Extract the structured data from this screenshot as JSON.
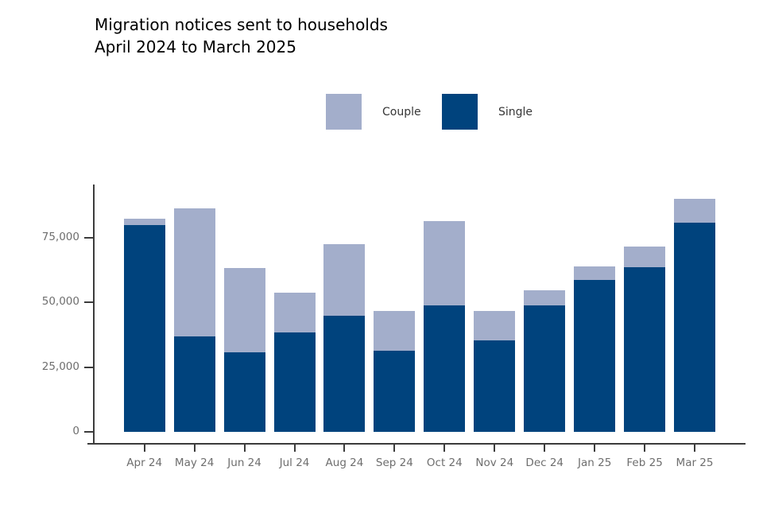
{
  "title": {
    "line1": "Migration notices sent to households",
    "line2": "April 2024 to March 2025"
  },
  "legend": [
    {
      "label": "Couple",
      "color": "#a3aecb"
    },
    {
      "label": "Single",
      "color": "#00437d"
    }
  ],
  "chart_data": {
    "type": "bar",
    "stacked": true,
    "title": "Migration notices sent to households April 2024 to March 2025",
    "xlabel": "",
    "ylabel": "",
    "categories": [
      "Apr 24",
      "May 24",
      "Jun 24",
      "Jul 24",
      "Aug 24",
      "Sep 24",
      "Oct 24",
      "Nov 24",
      "Dec 24",
      "Jan 25",
      "Feb 25",
      "Mar 25"
    ],
    "series": [
      {
        "name": "Single",
        "color": "#00437d",
        "values": [
          79900,
          36700,
          30600,
          38500,
          44900,
          31400,
          48900,
          35300,
          48900,
          58500,
          63500,
          80800
        ]
      },
      {
        "name": "Couple",
        "color": "#a3aecb",
        "values": [
          2500,
          49700,
          32500,
          15300,
          27500,
          15200,
          32600,
          11300,
          5600,
          5400,
          8000,
          9300
        ]
      }
    ],
    "totals": [
      82400,
      86400,
      63100,
      53800,
      72400,
      46600,
      81500,
      46600,
      54500,
      63900,
      71500,
      90100
    ],
    "ylim": [
      0,
      95000
    ],
    "yticks": [
      {
        "value": 0,
        "label": "0"
      },
      {
        "value": 25000,
        "label": "25,000"
      },
      {
        "value": 50000,
        "label": "50,000"
      },
      {
        "value": 75000,
        "label": "75,000"
      }
    ],
    "grid": false,
    "legend_position": "top-center"
  }
}
